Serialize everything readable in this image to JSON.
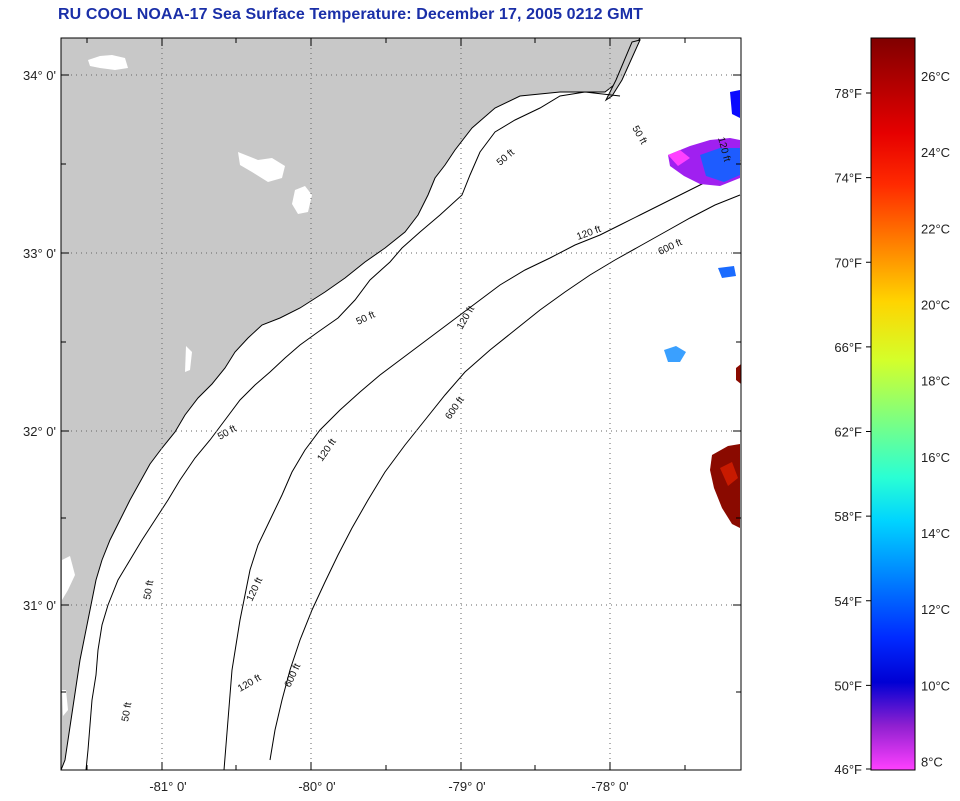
{
  "title": "RU COOL  NOAA-17  Sea Surface Temperature:  December 17, 2005 0212 GMT",
  "lat_labels": [
    "34° 0'",
    "33° 0'",
    "32° 0'",
    "31° 0'"
  ],
  "lon_labels": [
    "-81° 0'",
    "-80° 0'",
    "-79° 0'",
    "-78° 0'"
  ],
  "contour_labels": {
    "d50_a": "50 ft",
    "d50_b": "50 ft",
    "d50_c": "50 ft",
    "d50_d": "50 ft",
    "d50_e": "50 ft",
    "d50_f": "50 ft",
    "d120_a": "120 ft",
    "d120_b": "120 ft",
    "d120_c": "120 ft",
    "d120_d": "120 ft",
    "d120_e": "120 ft",
    "d120_f": "120 ft",
    "d600_a": "600 ft",
    "d600_b": "600 ft",
    "d600_c": "600 ft"
  },
  "colorbar": {
    "f_labels": [
      "78°F",
      "74°F",
      "70°F",
      "66°F",
      "62°F",
      "58°F",
      "54°F",
      "50°F",
      "46°F"
    ],
    "c_labels": [
      "26°C",
      "24°C",
      "22°C",
      "20°C",
      "18°C",
      "16°C",
      "14°C",
      "12°C",
      "10°C",
      "8°C"
    ],
    "colors": [
      "#800000",
      "#d40000",
      "#ff2a00",
      "#ff7f00",
      "#ffd400",
      "#d4ff2a",
      "#7fff7f",
      "#2affd4",
      "#00d4ff",
      "#007fff",
      "#002aff",
      "#0000d4",
      "#7f00d4",
      "#ff40ff"
    ]
  },
  "colors": {
    "land": "#c8c8c8",
    "ocean": "#ffffff",
    "title": "#1a2fa8"
  }
}
